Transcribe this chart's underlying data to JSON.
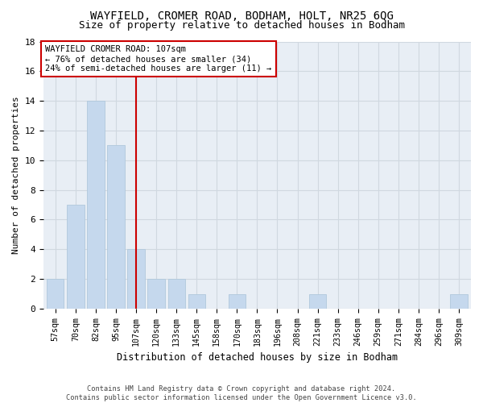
{
  "title": "WAYFIELD, CROMER ROAD, BODHAM, HOLT, NR25 6QG",
  "subtitle": "Size of property relative to detached houses in Bodham",
  "xlabel": "Distribution of detached houses by size in Bodham",
  "ylabel": "Number of detached properties",
  "categories": [
    "57sqm",
    "70sqm",
    "82sqm",
    "95sqm",
    "107sqm",
    "120sqm",
    "133sqm",
    "145sqm",
    "158sqm",
    "170sqm",
    "183sqm",
    "196sqm",
    "208sqm",
    "221sqm",
    "233sqm",
    "246sqm",
    "259sqm",
    "271sqm",
    "284sqm",
    "296sqm",
    "309sqm"
  ],
  "values": [
    2,
    7,
    14,
    11,
    4,
    2,
    2,
    1,
    0,
    1,
    0,
    0,
    0,
    1,
    0,
    0,
    0,
    0,
    0,
    0,
    1
  ],
  "bar_color": "#c5d8ed",
  "bar_edge_color": "#b0c8dc",
  "highlight_index": 4,
  "highlight_line_color": "#cc0000",
  "annotation_line1": "WAYFIELD CROMER ROAD: 107sqm",
  "annotation_line2": "← 76% of detached houses are smaller (34)",
  "annotation_line3": "24% of semi-detached houses are larger (11) →",
  "annotation_box_color": "#ffffff",
  "annotation_box_edge_color": "#cc0000",
  "ylim": [
    0,
    18
  ],
  "yticks": [
    0,
    2,
    4,
    6,
    8,
    10,
    12,
    14,
    16,
    18
  ],
  "footer_text": "Contains HM Land Registry data © Crown copyright and database right 2024.\nContains public sector information licensed under the Open Government Licence v3.0.",
  "grid_color": "#d0d8e0",
  "bg_color": "#e8eef5",
  "title_fontsize": 10,
  "subtitle_fontsize": 9,
  "bar_width": 0.85
}
